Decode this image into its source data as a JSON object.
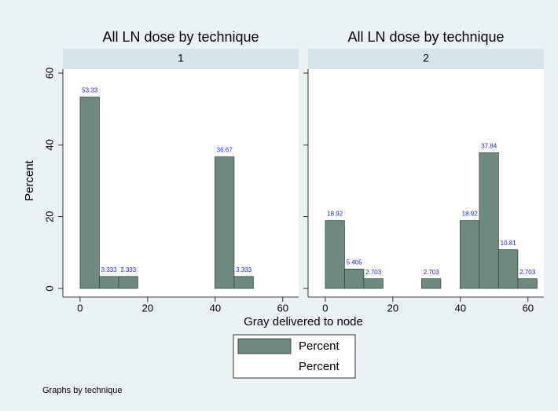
{
  "chart_data": [
    {
      "type": "histogram",
      "title": "All LN dose by technique",
      "subtitle": "1",
      "bins": [
        0,
        5.7,
        11.4,
        17.1,
        22.8,
        28.5,
        34.2,
        39.9,
        45.6,
        51.3
      ],
      "values": [
        53.33,
        3.333,
        3.333,
        0,
        0,
        0,
        0,
        36.67,
        3.333
      ],
      "color": "#6e8a80",
      "xlim": [
        -5.1,
        64.7
      ],
      "xticks": [
        0,
        20,
        40,
        60
      ],
      "ylim": [
        -2.4,
        61.1
      ],
      "yticks": [
        0,
        20,
        40,
        60
      ]
    },
    {
      "type": "histogram",
      "title": "All LN dose by technique",
      "subtitle": "2",
      "bins": [
        0,
        5.7,
        11.4,
        17.1,
        22.8,
        28.5,
        34.2,
        39.9,
        45.6,
        51.3,
        57,
        62.7
      ],
      "values": [
        18.92,
        5.405,
        2.703,
        0,
        0,
        2.703,
        0,
        18.92,
        37.84,
        10.81,
        2.703
      ],
      "color": "#6e8a80",
      "xlim": [
        -5.1,
        64.7
      ],
      "xticks": [
        0,
        20,
        40,
        60
      ],
      "ylim": [
        -2.4,
        61.1
      ],
      "yticks": [
        0,
        20,
        40,
        60
      ]
    }
  ],
  "y_label": "Percent",
  "x_label": "Gray delivered to node",
  "legend": [
    "Percent",
    "Percent"
  ],
  "note": "Graphs by technique"
}
